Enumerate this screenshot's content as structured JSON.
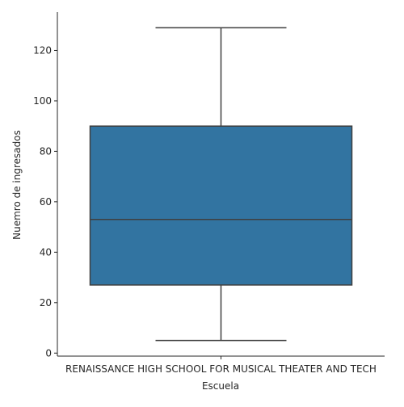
{
  "chart_data": {
    "type": "box",
    "categories": [
      "RENAISSANCE HIGH SCHOOL FOR MUSICAL THEATER AND TECH"
    ],
    "boxes": [
      {
        "category": "RENAISSANCE HIGH SCHOOL FOR MUSICAL THEATER AND TECH",
        "whisker_low": 5,
        "q1": 27,
        "median": 53,
        "q3": 90,
        "whisker_high": 129
      }
    ],
    "xlabel": "Escuela",
    "ylabel": "Nuemro de ingresados",
    "ylim": [
      -1.2,
      135.2
    ],
    "yticks": [
      0,
      20,
      40,
      60,
      80,
      100,
      120
    ],
    "grid": false,
    "colors": {
      "box_fill": "#3274a1",
      "lines": "#3f3f3f",
      "axis": "#262626"
    }
  }
}
